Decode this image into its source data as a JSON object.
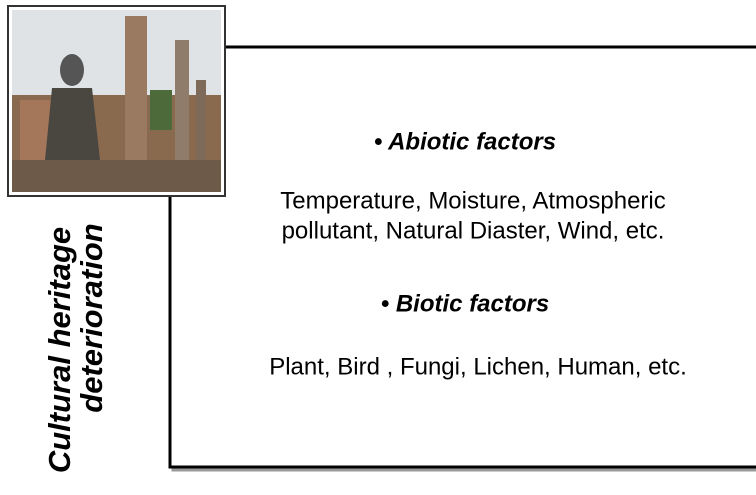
{
  "side_label": {
    "lines": [
      "Cultural  heritage",
      "deterioration"
    ]
  },
  "sections": [
    {
      "heading": "• Abiotic factors",
      "lines": [
        "Temperature, Moisture,  Atmospheric",
        "pollutant, Natural  Diaster, Wind, etc."
      ]
    },
    {
      "heading": "• Biotic factors",
      "lines": [
        "Plant, Bird , Fungi, Lichen,  Human, etc."
      ]
    }
  ]
}
